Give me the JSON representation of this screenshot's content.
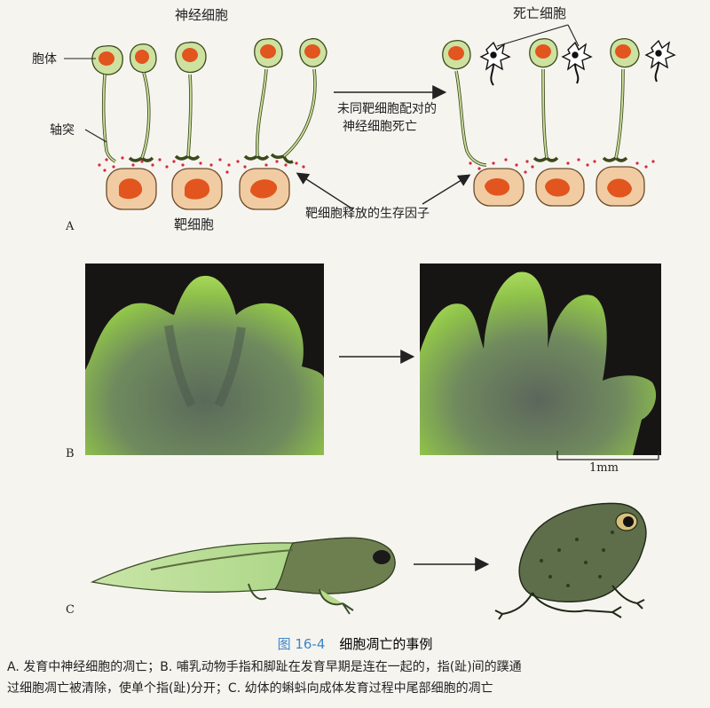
{
  "panel_a": {
    "label": "A",
    "neuron_title": "神经细胞",
    "dead_title": "死亡细胞",
    "soma_label": "胞体",
    "axon_label": "轴突",
    "target_label": "靶细胞",
    "arrow_text_line1": "未同靶细胞配对的",
    "arrow_text_line2": "神经细胞死亡",
    "factor_label": "靶细胞释放的生存因子"
  },
  "panel_b": {
    "label": "B",
    "scale_label": "1mm"
  },
  "panel_c": {
    "label": "C"
  },
  "caption": {
    "figure_number": "图 16-4",
    "title": "细胞凋亡的事例",
    "line1": "A. 发育中神经细胞的凋亡；B. 哺乳动物手指和脚趾在发育早期是连在一起的，指(趾)间的蹼通",
    "line2": "过细胞凋亡被清除，使单个指(趾)分开；C. 幼体的蝌蚪向成体发育过程中尾部细胞的凋亡"
  },
  "colors": {
    "soma": "#cde1a0",
    "nucleus": "#e2551e",
    "target_cell": "#f1cca2",
    "factor_dots": "#d9283a",
    "caption_blue": "#3d86c6"
  }
}
